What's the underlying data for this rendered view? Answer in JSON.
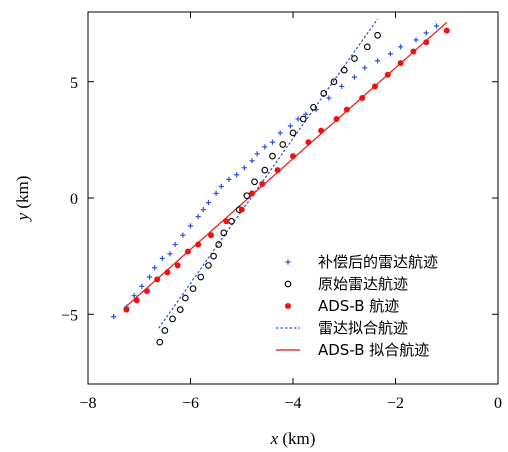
{
  "chart_data": {
    "type": "scatter",
    "xlabel_var": "x",
    "xlabel_unit": "(km)",
    "ylabel_var": "y",
    "ylabel_unit": "(km)",
    "xlim": [
      -8,
      0
    ],
    "ylim": [
      -8,
      8
    ],
    "x_ticks": [
      -8,
      -6,
      -4,
      -2,
      0
    ],
    "x_tick_labels": [
      "−8",
      "−6",
      "−4",
      "−2",
      "0"
    ],
    "y_ticks": [
      -5,
      0,
      5
    ],
    "y_tick_labels": [
      "−5",
      "0",
      "5"
    ],
    "grid": false,
    "legend_position": "lower-right",
    "colors": {
      "blue": "#2b52d6",
      "black": "#000000",
      "red": "#ee1111"
    },
    "series": [
      {
        "name": "补偿后的雷达航迹",
        "marker": "plus",
        "color": "#2b52d6",
        "points": [
          [
            -7.5,
            -5.1
          ],
          [
            -7.25,
            -4.7
          ],
          [
            -7.1,
            -4.2
          ],
          [
            -6.95,
            -3.8
          ],
          [
            -6.8,
            -3.4
          ],
          [
            -6.7,
            -3.0
          ],
          [
            -6.55,
            -2.6
          ],
          [
            -6.4,
            -2.4
          ],
          [
            -6.3,
            -2.0
          ],
          [
            -6.15,
            -1.6
          ],
          [
            -6.0,
            -1.2
          ],
          [
            -5.85,
            -0.8
          ],
          [
            -5.75,
            -0.5
          ],
          [
            -5.65,
            -0.2
          ],
          [
            -5.5,
            0.2
          ],
          [
            -5.4,
            0.5
          ],
          [
            -5.25,
            0.8
          ],
          [
            -5.1,
            1.0
          ],
          [
            -4.95,
            1.3
          ],
          [
            -4.8,
            1.6
          ],
          [
            -4.7,
            1.9
          ],
          [
            -4.55,
            2.2
          ],
          [
            -4.4,
            2.4
          ],
          [
            -4.25,
            2.8
          ],
          [
            -4.05,
            3.1
          ],
          [
            -3.9,
            3.4
          ],
          [
            -3.75,
            3.6
          ],
          [
            -3.55,
            3.8
          ],
          [
            -3.3,
            4.3
          ],
          [
            -3.05,
            4.8
          ],
          [
            -2.8,
            5.2
          ],
          [
            -2.6,
            5.6
          ],
          [
            -2.35,
            5.9
          ],
          [
            -2.1,
            6.2
          ],
          [
            -1.9,
            6.5
          ],
          [
            -1.6,
            6.8
          ],
          [
            -1.4,
            7.1
          ],
          [
            -1.2,
            7.4
          ]
        ]
      },
      {
        "name": "原始雷达航迹",
        "marker": "circle-open",
        "color": "#000000",
        "points": [
          [
            -6.6,
            -6.2
          ],
          [
            -6.5,
            -5.7
          ],
          [
            -6.35,
            -5.2
          ],
          [
            -6.2,
            -4.8
          ],
          [
            -6.1,
            -4.3
          ],
          [
            -5.95,
            -3.9
          ],
          [
            -5.8,
            -3.4
          ],
          [
            -5.65,
            -2.9
          ],
          [
            -5.55,
            -2.5
          ],
          [
            -5.45,
            -2.0
          ],
          [
            -5.35,
            -1.5
          ],
          [
            -5.2,
            -1.0
          ],
          [
            -5.05,
            -0.5
          ],
          [
            -4.9,
            0.1
          ],
          [
            -4.75,
            0.7
          ],
          [
            -4.55,
            1.2
          ],
          [
            -4.4,
            1.8
          ],
          [
            -4.2,
            2.3
          ],
          [
            -4.0,
            2.8
          ],
          [
            -3.8,
            3.4
          ],
          [
            -3.6,
            3.9
          ],
          [
            -3.4,
            4.5
          ],
          [
            -3.2,
            5.0
          ],
          [
            -3.0,
            5.5
          ],
          [
            -2.8,
            6.0
          ],
          [
            -2.55,
            6.5
          ],
          [
            -2.35,
            7.0
          ]
        ]
      },
      {
        "name": "ADS-B 航迹",
        "marker": "dot",
        "color": "#ee1111",
        "points": [
          [
            -7.25,
            -4.8
          ],
          [
            -7.05,
            -4.4
          ],
          [
            -6.85,
            -4.0
          ],
          [
            -6.65,
            -3.5
          ],
          [
            -6.45,
            -3.2
          ],
          [
            -6.25,
            -2.9
          ],
          [
            -6.05,
            -2.3
          ],
          [
            -5.85,
            -2.0
          ],
          [
            -5.6,
            -1.6
          ],
          [
            -5.3,
            -1.0
          ],
          [
            -5.0,
            -0.5
          ],
          [
            -4.8,
            0.2
          ],
          [
            -4.6,
            0.6
          ],
          [
            -4.3,
            1.2
          ],
          [
            -4.0,
            1.8
          ],
          [
            -3.7,
            2.4
          ],
          [
            -3.45,
            2.9
          ],
          [
            -3.15,
            3.4
          ],
          [
            -2.95,
            3.8
          ],
          [
            -2.65,
            4.3
          ],
          [
            -2.4,
            4.8
          ],
          [
            -2.15,
            5.3
          ],
          [
            -1.9,
            5.8
          ],
          [
            -1.65,
            6.3
          ],
          [
            -1.4,
            6.7
          ],
          [
            -1.0,
            7.2
          ]
        ]
      },
      {
        "name": "雷达拟合航迹",
        "marker": "line-dotted",
        "color": "#2b52d6",
        "line": [
          [
            -6.62,
            -5.6
          ],
          [
            -2.35,
            7.7
          ]
        ]
      },
      {
        "name": "ADS-B 拟合航迹",
        "marker": "line-solid",
        "color": "#ee1111",
        "line": [
          [
            -7.3,
            -4.75
          ],
          [
            -1.0,
            7.55
          ]
        ]
      }
    ]
  }
}
